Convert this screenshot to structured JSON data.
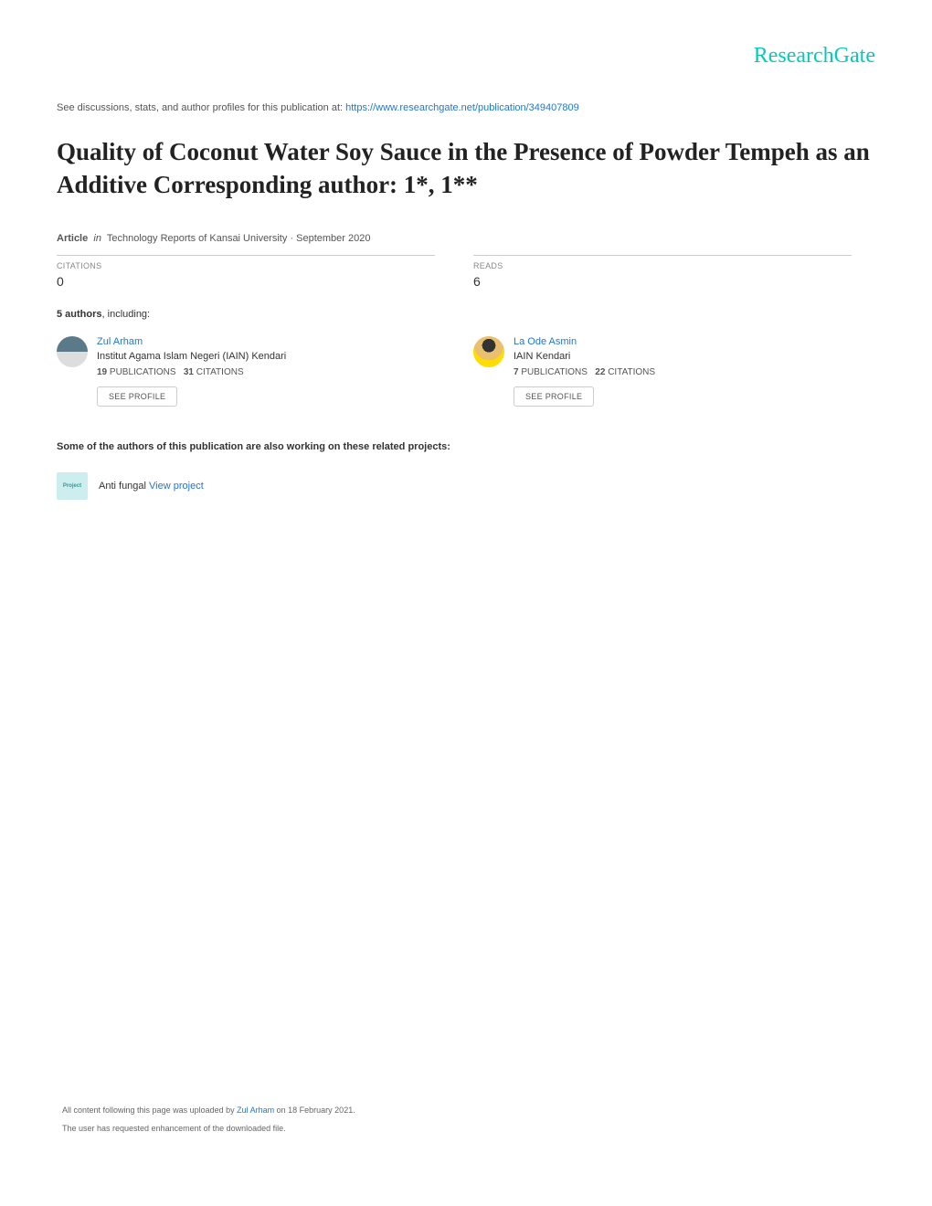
{
  "logo": "ResearchGate",
  "see_prefix": "See discussions, stats, and author profiles for this publication at: ",
  "publication_url": "https://www.researchgate.net/publication/349407809",
  "title": "Quality of Coconut Water Soy Sauce in the Presence of Powder Tempeh as an Additive Corresponding author: 1*, 1**",
  "article_label": "Article",
  "in_label": "in",
  "journal_line": "Technology Reports of Kansai University · September 2020",
  "citations_label": "CITATIONS",
  "citations_value": "0",
  "reads_label": "READS",
  "reads_value": "6",
  "authors_count": "5 authors",
  "authors_suffix": ", including:",
  "authors": [
    {
      "name": "Zul Arham",
      "institution": "Institut Agama Islam Negeri (IAIN) Kendari",
      "pubs": "19",
      "pubs_label": "PUBLICATIONS",
      "cits": "31",
      "cits_label": "CITATIONS",
      "see_profile": "SEE PROFILE"
    },
    {
      "name": "La Ode Asmin",
      "institution": "IAIN Kendari",
      "pubs": "7",
      "pubs_label": "PUBLICATIONS",
      "cits": "22",
      "cits_label": "CITATIONS",
      "see_profile": "SEE PROFILE"
    }
  ],
  "related_projects_line": "Some of the authors of this publication are also working on these related projects:",
  "project_icon_text": "Project",
  "project_name": "Anti fungal ",
  "view_project": "View project",
  "footer_prefix": "All content following this page was uploaded by ",
  "footer_author": "Zul Arham",
  "footer_suffix": " on 18 February 2021.",
  "footer_line2": "The user has requested enhancement of the downloaded file.",
  "colors": {
    "brand": "#00ccbb",
    "link": "#2277cc",
    "text": "#333333",
    "muted": "#888888",
    "border": "#cccccc",
    "project_bg": "#cceeee"
  }
}
